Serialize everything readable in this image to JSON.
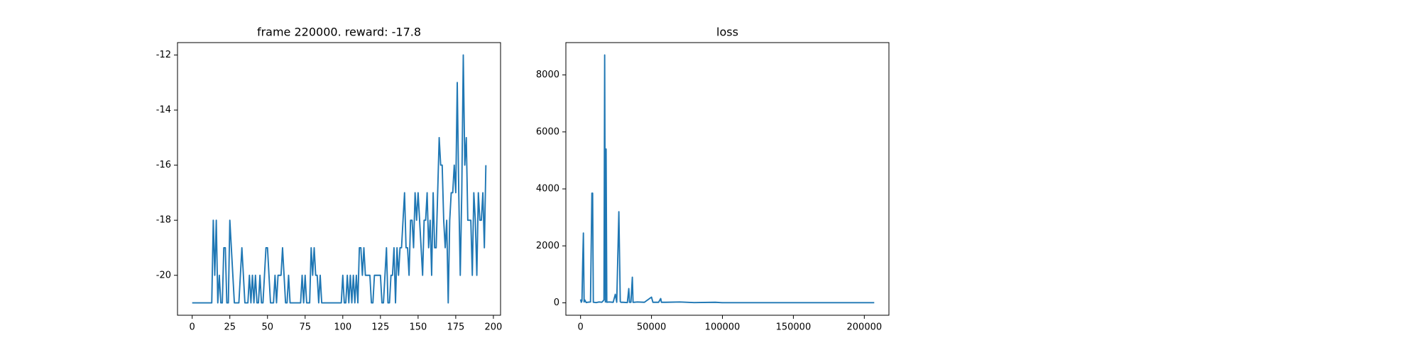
{
  "chart_data": [
    {
      "type": "line",
      "title": "frame 220000. reward: -17.8",
      "x": [
        0,
        1,
        2,
        3,
        4,
        5,
        6,
        7,
        8,
        9,
        10,
        11,
        12,
        13,
        14,
        15,
        16,
        17,
        18,
        19,
        20,
        21,
        22,
        23,
        24,
        25,
        26,
        27,
        28,
        29,
        30,
        31,
        32,
        33,
        34,
        35,
        36,
        37,
        38,
        39,
        40,
        41,
        42,
        43,
        44,
        45,
        46,
        47,
        48,
        49,
        50,
        51,
        52,
        53,
        54,
        55,
        56,
        57,
        58,
        59,
        60,
        61,
        62,
        63,
        64,
        65,
        66,
        67,
        68,
        69,
        70,
        71,
        72,
        73,
        74,
        75,
        76,
        77,
        78,
        79,
        80,
        81,
        82,
        83,
        84,
        85,
        86,
        87,
        88,
        89,
        90,
        91,
        92,
        93,
        94,
        95,
        96,
        97,
        98,
        99,
        100,
        101,
        102,
        103,
        104,
        105,
        106,
        107,
        108,
        109,
        110,
        111,
        112,
        113,
        114,
        115,
        116,
        117,
        118,
        119,
        120,
        121,
        122,
        123,
        124,
        125,
        126,
        127,
        128,
        129,
        130,
        131,
        132,
        133,
        134,
        135,
        136,
        137,
        138,
        139,
        140,
        141,
        142,
        143,
        144,
        145,
        146,
        147,
        148,
        149,
        150,
        151,
        152,
        153,
        154,
        155,
        156,
        157,
        158,
        159,
        160,
        161,
        162,
        163,
        164,
        165,
        166,
        167,
        168,
        169,
        170,
        171,
        172,
        173,
        174,
        175,
        176,
        177,
        178,
        179,
        180,
        181,
        182,
        183,
        184,
        185,
        186,
        187,
        188,
        189,
        190,
        191,
        192,
        193,
        194,
        195
      ],
      "series": [
        {
          "color": "#1f77b4",
          "values": [
            -21,
            -21,
            -21,
            -21,
            -21,
            -21,
            -21,
            -21,
            -21,
            -21,
            -21,
            -21,
            -21,
            -21,
            -18,
            -20,
            -18,
            -21,
            -20,
            -21,
            -21,
            -19,
            -19,
            -21,
            -21,
            -18,
            -19,
            -20,
            -21,
            -21,
            -21,
            -21,
            -20,
            -19,
            -20,
            -21,
            -21,
            -21,
            -20,
            -21,
            -20,
            -21,
            -20,
            -21,
            -21,
            -20,
            -21,
            -21,
            -20,
            -19,
            -19,
            -20,
            -21,
            -21,
            -21,
            -20,
            -21,
            -20,
            -20,
            -20,
            -19,
            -20,
            -21,
            -21,
            -20,
            -21,
            -21,
            -21,
            -21,
            -21,
            -21,
            -21,
            -21,
            -20,
            -21,
            -20,
            -21,
            -21,
            -21,
            -19,
            -20,
            -19,
            -20,
            -20,
            -21,
            -20,
            -21,
            -21,
            -21,
            -21,
            -21,
            -21,
            -21,
            -21,
            -21,
            -21,
            -21,
            -21,
            -21,
            -21,
            -20,
            -21,
            -21,
            -20,
            -21,
            -20,
            -21,
            -20,
            -21,
            -20,
            -21,
            -19,
            -19,
            -20,
            -19,
            -20,
            -20,
            -20,
            -20,
            -21,
            -21,
            -20,
            -20,
            -20,
            -20,
            -20,
            -21,
            -21,
            -20,
            -19,
            -21,
            -21,
            -20,
            -20,
            -19,
            -21,
            -19,
            -20,
            -19,
            -19,
            -18,
            -17,
            -19,
            -19,
            -20,
            -18,
            -18,
            -19,
            -17,
            -18,
            -17,
            -18,
            -19,
            -20,
            -18,
            -18,
            -17,
            -19,
            -18,
            -20,
            -17,
            -19,
            -19,
            -17,
            -15,
            -16,
            -16,
            -18,
            -19,
            -18,
            -21,
            -18,
            -17,
            -17,
            -16,
            -17,
            -13,
            -17,
            -20,
            -17,
            -12,
            -16,
            -15,
            -18,
            -18,
            -18,
            -20,
            -17,
            -18,
            -20,
            -17,
            -18,
            -18,
            -17,
            -19,
            -16
          ]
        }
      ],
      "xlim": [
        -9.75,
        204.75
      ],
      "xticks": [
        0,
        25,
        50,
        75,
        100,
        125,
        150,
        175,
        200
      ],
      "ylim": [
        -21.45,
        -11.55
      ],
      "yticks": [
        -20,
        -18,
        -16,
        -14,
        -12
      ]
    },
    {
      "type": "line",
      "title": "loss",
      "x": [
        0,
        500,
        1000,
        1500,
        2000,
        2500,
        3000,
        4000,
        5000,
        7000,
        8000,
        8500,
        9000,
        11000,
        13000,
        15000,
        16500,
        17000,
        17500,
        18000,
        18500,
        20000,
        23000,
        24500,
        25500,
        27000,
        28000,
        28500,
        30000,
        33000,
        34000,
        34500,
        35500,
        36500,
        37000,
        38000,
        40000,
        45000,
        50000,
        51000,
        52000,
        55000,
        56500,
        57000,
        60000,
        70000,
        80000,
        95000,
        100000,
        150000,
        207000
      ],
      "series": [
        {
          "color": "#1f77b4",
          "values": [
            120,
            20,
            80,
            1400,
            2450,
            30,
            100,
            10,
            20,
            30,
            3850,
            3850,
            20,
            10,
            30,
            20,
            100,
            8700,
            30,
            5400,
            20,
            30,
            20,
            300,
            20,
            3200,
            40,
            20,
            20,
            10,
            500,
            20,
            20,
            900,
            20,
            20,
            30,
            20,
            200,
            20,
            20,
            20,
            150,
            20,
            20,
            30,
            10,
            20,
            5,
            5,
            5
          ]
        }
      ],
      "xlim": [
        -10350,
        217350
      ],
      "xticks": [
        0,
        50000,
        100000,
        150000,
        200000
      ],
      "ylim": [
        -435,
        9135
      ],
      "yticks": [
        0,
        2000,
        4000,
        6000,
        8000
      ]
    }
  ]
}
